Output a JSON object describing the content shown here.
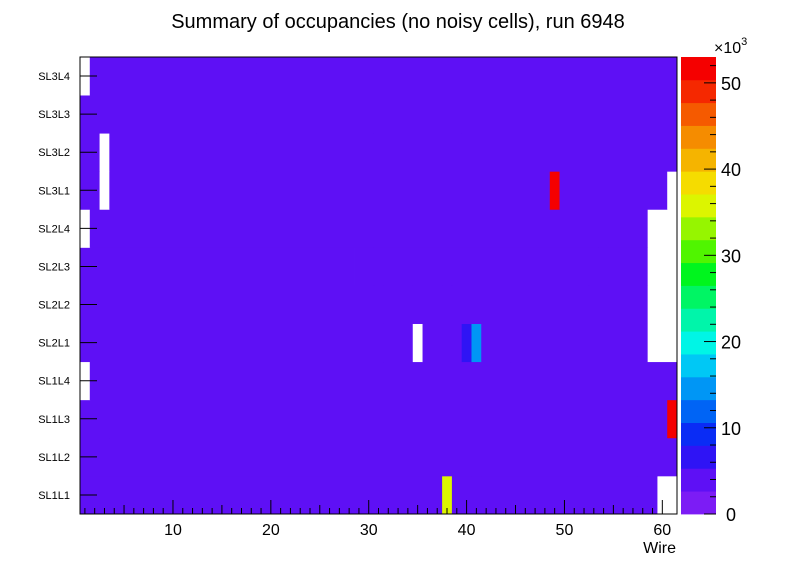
{
  "chart_data": {
    "type": "heatmap",
    "title": "Summary of occupancies (no noisy cells), run 6948",
    "xlabel": "Wire",
    "ylabel": "",
    "xlim": [
      0,
      61
    ],
    "x_ticks": [
      "10",
      "20",
      "30",
      "40",
      "50",
      "60"
    ],
    "x_tick_values": [
      10,
      20,
      30,
      40,
      50,
      60
    ],
    "y_categories": [
      "SL1L1",
      "SL1L2",
      "SL1L3",
      "SL1L4",
      "SL2L1",
      "SL2L2",
      "SL2L3",
      "SL2L4",
      "SL3L1",
      "SL3L2",
      "SL3L3",
      "SL3L4"
    ],
    "z_range": [
      0,
      53000
    ],
    "z_exponent_label": "×10",
    "z_exponent_power": "3",
    "z_ticks": [
      "0",
      "10",
      "20",
      "30",
      "40",
      "50"
    ],
    "z_tick_values": [
      0,
      10,
      20,
      30,
      40,
      50
    ],
    "palette": [
      "#7c1cf5",
      "#5e10f5",
      "#2f14f5",
      "#0a2cf5",
      "#0064f5",
      "#0096f5",
      "#00c8f5",
      "#00f5e6",
      "#00f5aa",
      "#00f564",
      "#00f51e",
      "#50f500",
      "#96f500",
      "#dcf500",
      "#f5dc00",
      "#f5b400",
      "#f58c00",
      "#f55a00",
      "#f52800",
      "#f50000"
    ],
    "rows": [
      {
        "layer": "SL1L1",
        "segments": [
          {
            "from": 0,
            "to": 2,
            "value": 3
          },
          {
            "from": 2,
            "to": 37,
            "value": 4.5
          },
          {
            "from": 37,
            "to": 38,
            "value": 35
          },
          {
            "from": 38,
            "to": 40,
            "value": 3
          },
          {
            "from": 40,
            "to": 41,
            "value": 4.5
          },
          {
            "from": 41,
            "to": 57,
            "value": 3
          },
          {
            "from": 57,
            "to": 59,
            "value": 4.5
          },
          {
            "from": 59,
            "to": 61,
            "value": 0
          }
        ]
      },
      {
        "layer": "SL1L2",
        "segments": [
          {
            "from": 0,
            "to": 3,
            "value": 3
          },
          {
            "from": 3,
            "to": 59,
            "value": 4.5
          },
          {
            "from": 59,
            "to": 61,
            "value": 3
          }
        ]
      },
      {
        "layer": "SL1L3",
        "segments": [
          {
            "from": 0,
            "to": 3,
            "value": 3
          },
          {
            "from": 3,
            "to": 59,
            "value": 4.5
          },
          {
            "from": 59,
            "to": 60,
            "value": 3
          },
          {
            "from": 60,
            "to": 61,
            "value": 52
          }
        ]
      },
      {
        "layer": "SL1L4",
        "segments": [
          {
            "from": 0,
            "to": 1,
            "value": 0
          },
          {
            "from": 1,
            "to": 61,
            "value": 3
          }
        ]
      },
      {
        "layer": "SL2L1",
        "segments": [
          {
            "from": 0,
            "to": 31,
            "value": 4.5
          },
          {
            "from": 31,
            "to": 34,
            "value": 3
          },
          {
            "from": 34,
            "to": 35,
            "value": 0
          },
          {
            "from": 35,
            "to": 39,
            "value": 4.5
          },
          {
            "from": 39,
            "to": 40,
            "value": 7
          },
          {
            "from": 40,
            "to": 41,
            "value": 15
          },
          {
            "from": 41,
            "to": 44,
            "value": 4.5
          },
          {
            "from": 44,
            "to": 58,
            "value": 3
          },
          {
            "from": 58,
            "to": 61,
            "value": 0
          }
        ]
      },
      {
        "layer": "SL2L2",
        "segments": [
          {
            "from": 0,
            "to": 31,
            "value": 4.5
          },
          {
            "from": 31,
            "to": 34,
            "value": 3
          },
          {
            "from": 34,
            "to": 37,
            "value": 4.5
          },
          {
            "from": 37,
            "to": 58,
            "value": 3
          },
          {
            "from": 58,
            "to": 61,
            "value": 0
          }
        ]
      },
      {
        "layer": "SL2L3",
        "segments": [
          {
            "from": 0,
            "to": 28,
            "value": 4.5
          },
          {
            "from": 28,
            "to": 30,
            "value": 3
          },
          {
            "from": 30,
            "to": 38,
            "value": 3
          },
          {
            "from": 38,
            "to": 52,
            "value": 4.5
          },
          {
            "from": 52,
            "to": 58,
            "value": 3
          },
          {
            "from": 58,
            "to": 61,
            "value": 0
          }
        ]
      },
      {
        "layer": "SL2L4",
        "segments": [
          {
            "from": 0,
            "to": 1,
            "value": 0
          },
          {
            "from": 1,
            "to": 30,
            "value": 4.5
          },
          {
            "from": 30,
            "to": 53,
            "value": 3
          },
          {
            "from": 53,
            "to": 58,
            "value": 4.5
          },
          {
            "from": 58,
            "to": 61,
            "value": 0
          }
        ]
      },
      {
        "layer": "SL3L1",
        "segments": [
          {
            "from": 0,
            "to": 2,
            "value": 3
          },
          {
            "from": 2,
            "to": 3,
            "value": 0
          },
          {
            "from": 3,
            "to": 16,
            "value": 3
          },
          {
            "from": 16,
            "to": 48,
            "value": 4.5
          },
          {
            "from": 48,
            "to": 49,
            "value": 52
          },
          {
            "from": 49,
            "to": 60,
            "value": 3
          },
          {
            "from": 60,
            "to": 61,
            "value": 0
          }
        ]
      },
      {
        "layer": "SL3L2",
        "segments": [
          {
            "from": 0,
            "to": 2,
            "value": 3
          },
          {
            "from": 2,
            "to": 3,
            "value": 0
          },
          {
            "from": 3,
            "to": 18,
            "value": 3
          },
          {
            "from": 18,
            "to": 48,
            "value": 4.5
          },
          {
            "from": 48,
            "to": 61,
            "value": 3
          }
        ]
      },
      {
        "layer": "SL3L3",
        "segments": [
          {
            "from": 0,
            "to": 18,
            "value": 3
          },
          {
            "from": 18,
            "to": 30,
            "value": 4.5
          },
          {
            "from": 30,
            "to": 39,
            "value": 3
          },
          {
            "from": 39,
            "to": 61,
            "value": 3
          }
        ]
      },
      {
        "layer": "SL3L4",
        "segments": [
          {
            "from": 0,
            "to": 1,
            "value": 0
          },
          {
            "from": 1,
            "to": 20,
            "value": 3
          },
          {
            "from": 20,
            "to": 22,
            "value": 4.5
          },
          {
            "from": 22,
            "to": 25,
            "value": 3
          },
          {
            "from": 25,
            "to": 31,
            "value": 4.5
          },
          {
            "from": 31,
            "to": 33,
            "value": 3
          },
          {
            "from": 33,
            "to": 37,
            "value": 3
          },
          {
            "from": 37,
            "to": 38,
            "value": 4.5
          },
          {
            "from": 38,
            "to": 61,
            "value": 3
          }
        ]
      }
    ]
  }
}
